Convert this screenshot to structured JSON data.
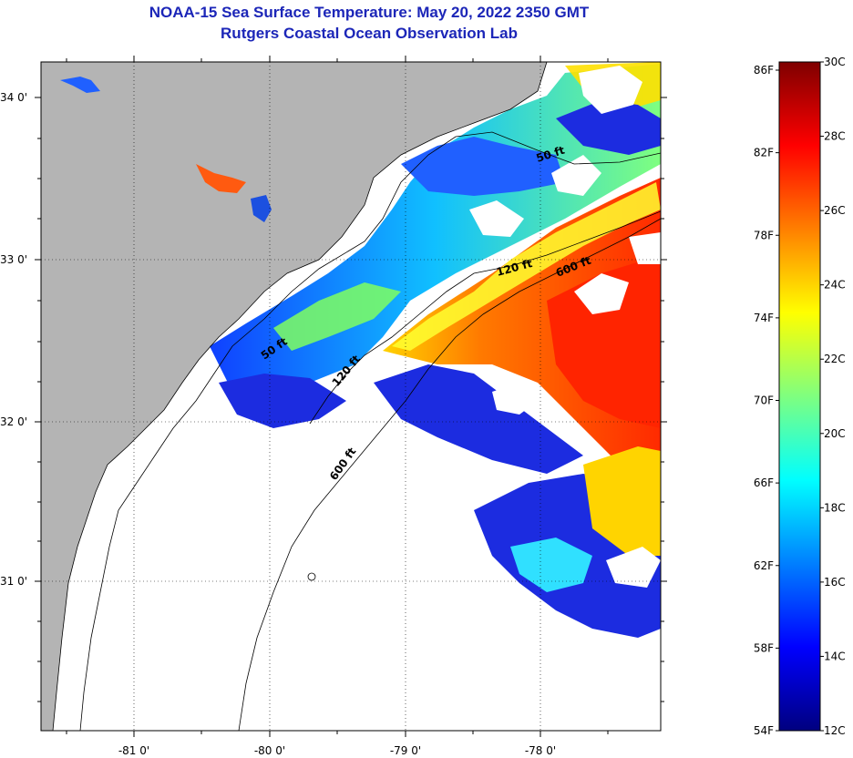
{
  "title": "NOAA-15 Sea Surface Temperature:  May 20, 2022 2350 GMT",
  "subtitle": "Rutgers Coastal Ocean Observation Lab",
  "map": {
    "lat_labels": [
      "34 0'",
      "33 0'",
      "32 0'",
      "31 0'"
    ],
    "lon_labels": [
      "-81 0'",
      "-80 0'",
      "-79 0'",
      "-78 0'"
    ],
    "contour_labels": {
      "c50_a": "50 ft",
      "c50_b": "50 ft",
      "c120_a": "120 ft",
      "c120_b": "120 ft",
      "c600_a": "600 ft",
      "c600_b": "600 ft"
    },
    "colors": {
      "land": "#b4b4b4",
      "cloud": "#ffffff",
      "cold": "#1c2ce0",
      "warm": "#ff2a00"
    }
  },
  "colorbar": {
    "f_labels": [
      "86F",
      "82F",
      "78F",
      "74F",
      "70F",
      "66F",
      "62F",
      "58F",
      "54F"
    ],
    "c_labels": [
      "30C",
      "28C",
      "26C",
      "24C",
      "22C",
      "20C",
      "18C",
      "16C",
      "14C",
      "12C"
    ],
    "colors": [
      "#00007f",
      "#0000ff",
      "#007fff",
      "#00ffff",
      "#7fff7f",
      "#ffff00",
      "#ff7f00",
      "#ff0000",
      "#7f0000"
    ]
  }
}
